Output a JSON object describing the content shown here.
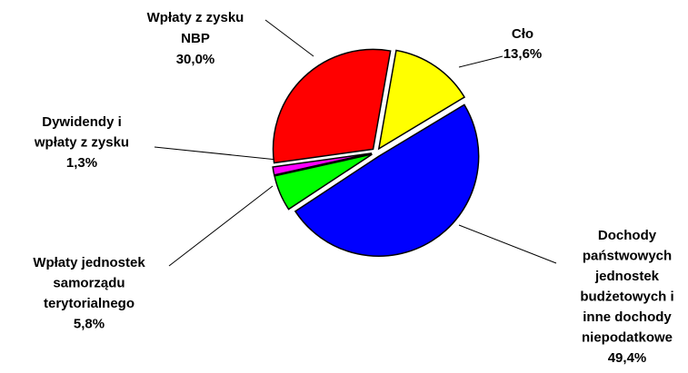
{
  "chart_data": {
    "type": "pie",
    "categories": [
      [
        "Cło"
      ],
      [
        "Dochody",
        "państwowych",
        "jednostek",
        "budżetowych i",
        "inne dochody",
        "niepodatkowe"
      ],
      [
        "Wpłaty jednostek",
        "samorządu",
        "terytorialnego"
      ],
      [
        "Dywidendy i",
        "wpłaty z zysku"
      ],
      [
        "Wpłaty z zysku",
        "NBP"
      ]
    ],
    "values": [
      13.6,
      49.4,
      5.8,
      1.3,
      30.0
    ],
    "value_labels": [
      "13,6%",
      "49,4%",
      "5,8%",
      "1,3%",
      "30,0%"
    ],
    "colors": [
      "#ffff00",
      "#0000ff",
      "#00ff00",
      "#ff00ff",
      "#ff0000"
    ]
  }
}
